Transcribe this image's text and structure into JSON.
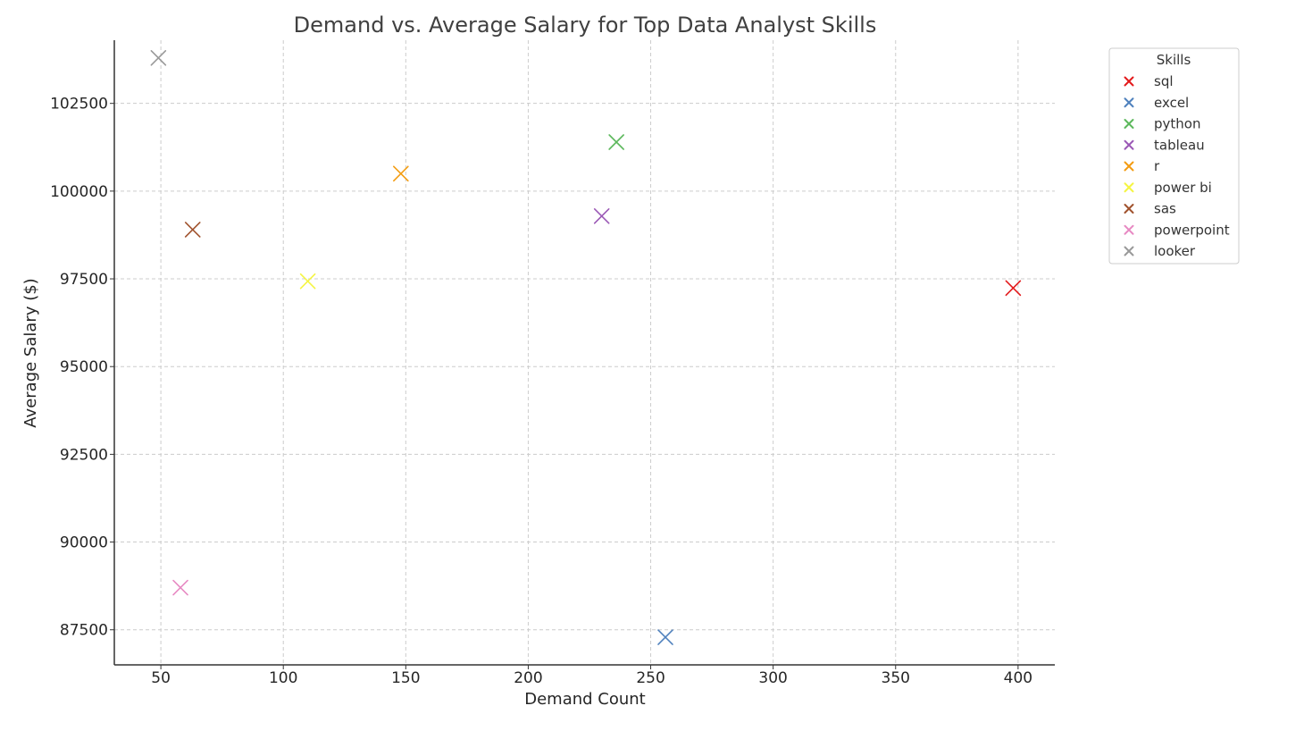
{
  "chart_data": {
    "type": "scatter",
    "title": "Demand vs. Average Salary for Top Data Analyst Skills",
    "xlabel": "Demand Count",
    "ylabel": "Average Salary ($)",
    "xlim": [
      31,
      415
    ],
    "ylim": [
      86500,
      104300
    ],
    "x_ticks": [
      50,
      100,
      150,
      200,
      250,
      300,
      350,
      400
    ],
    "y_ticks": [
      87500,
      90000,
      92500,
      95000,
      97500,
      100000,
      102500
    ],
    "grid": true,
    "marker": "x",
    "legend": {
      "title": "Skills",
      "position": "outside-right-top"
    },
    "series": [
      {
        "name": "sql",
        "color": "#e31a1c",
        "x": 398,
        "y": 97237
      },
      {
        "name": "excel",
        "color": "#4f81bd",
        "x": 256,
        "y": 87288
      },
      {
        "name": "python",
        "color": "#5cb85c",
        "x": 236,
        "y": 101397
      },
      {
        "name": "tableau",
        "color": "#9b59b6",
        "x": 230,
        "y": 99288
      },
      {
        "name": "r",
        "color": "#f39c12",
        "x": 148,
        "y": 100499
      },
      {
        "name": "power bi",
        "color": "#f5f542",
        "x": 110,
        "y": 97431
      },
      {
        "name": "sas",
        "color": "#a0522d",
        "x": 63,
        "y": 98902
      },
      {
        "name": "powerpoint",
        "color": "#e78ac3",
        "x": 58,
        "y": 88701
      },
      {
        "name": "looker",
        "color": "#999999",
        "x": 49,
        "y": 103795
      }
    ]
  }
}
